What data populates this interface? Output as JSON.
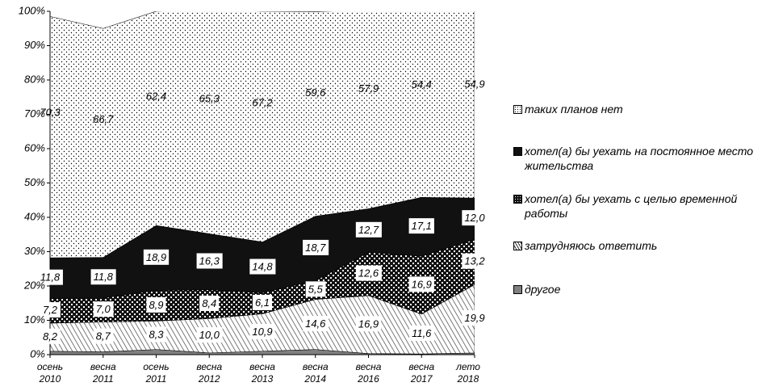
{
  "chart_data": {
    "type": "stacked_area",
    "categories": [
      "осень 2010",
      "весна 2011",
      "осень 2011",
      "весна 2012",
      "весна 2013",
      "весна 2014",
      "весна 2016",
      "весна 2017",
      "лето 2018"
    ],
    "series": [
      {
        "name": "другое",
        "color": "#808080",
        "pattern": null,
        "values": [
          1,
          0.8,
          1.5,
          0.5,
          1,
          1.5,
          0.3,
          0.2,
          0.5
        ]
      },
      {
        "name": "затрудняюсь ответить",
        "color": "#000000",
        "pattern": "hatch",
        "values": [
          8.2,
          8.7,
          8.3,
          10.0,
          10.9,
          14.6,
          16.9,
          11.6,
          19.9
        ],
        "value_labels": [
          "8,2",
          "8,7",
          "8,3",
          "10,0",
          "10,9",
          "14,6",
          "16,9",
          "11,6",
          "19,9"
        ]
      },
      {
        "name": "хотел(а) бы уехать с целью временной работы",
        "color": "#000000",
        "pattern": "checks",
        "values": [
          7.2,
          7.0,
          8.9,
          8.4,
          6.1,
          5.5,
          12.6,
          16.9,
          13.2
        ],
        "value_labels": [
          "7,2",
          "7,0",
          "8,9",
          "8,4",
          "6,1",
          "5,5",
          "12,6",
          "16,9",
          "13,2"
        ]
      },
      {
        "name": "хотел(а) бы уехать на постоянное место жительства",
        "color": "#111111",
        "pattern": null,
        "values": [
          11.8,
          11.8,
          18.9,
          16.3,
          14.8,
          18.7,
          12.7,
          17.1,
          12.0
        ],
        "value_labels": [
          "11,8",
          "11,8",
          "18,9",
          "16,3",
          "14,8",
          "18,7",
          "12,7",
          "17,1",
          "12,0"
        ]
      },
      {
        "name": "таких планов нет",
        "color": "#000000",
        "pattern": "dots",
        "values": [
          70.3,
          66.7,
          62.4,
          65.3,
          67.2,
          59.6,
          57.9,
          54.4,
          54.9
        ],
        "value_labels": [
          "70,3",
          "66,7",
          "62,4",
          "65,3",
          "67,2",
          "59,6",
          "57,9",
          "54,4",
          "54,9"
        ]
      }
    ],
    "ylim": [
      0,
      100
    ],
    "yticks": [
      {
        "value": 0,
        "label": "0%"
      },
      {
        "value": 10,
        "label": "10%"
      },
      {
        "value": 20,
        "label": "20%"
      },
      {
        "value": 30,
        "label": "30%"
      },
      {
        "value": 40,
        "label": "40%"
      },
      {
        "value": 50,
        "label": "50%"
      },
      {
        "value": 60,
        "label": "60%"
      },
      {
        "value": 70,
        "label": "70%"
      },
      {
        "value": 80,
        "label": "80%"
      },
      {
        "value": 90,
        "label": "90%"
      },
      {
        "value": 100,
        "label": "100%"
      }
    ],
    "legend": "right"
  }
}
